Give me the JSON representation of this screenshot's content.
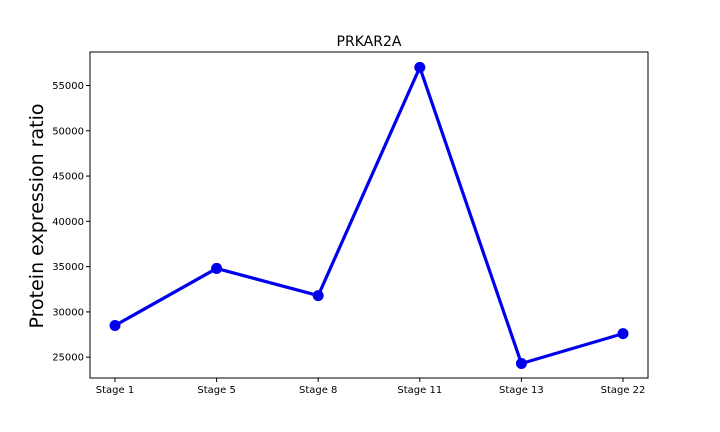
{
  "chart_data": {
    "type": "line",
    "title": "PRKAR2A",
    "xlabel": "",
    "ylabel": "Protein expression ratio",
    "categories": [
      "Stage 1",
      "Stage 5",
      "Stage 8",
      "Stage 11",
      "Stage 13",
      "Stage 22"
    ],
    "series": [
      {
        "values": [
          28500,
          34800,
          31800,
          57000,
          24300,
          27600
        ],
        "color": "#0000ee",
        "marker": "circle"
      }
    ],
    "ylim": [
      22700,
      58700
    ],
    "yticks": [
      25000,
      30000,
      35000,
      40000,
      45000,
      50000,
      55000
    ],
    "grid": false,
    "legend": "none"
  }
}
